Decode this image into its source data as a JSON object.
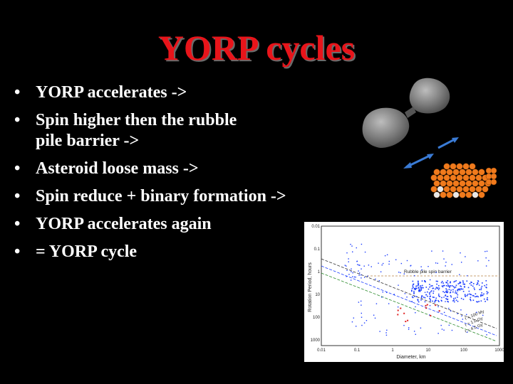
{
  "slide": {
    "title": "YORP cycles",
    "bullets": [
      "YORP accelerates ->",
      "Spin higher then the rubble pile barrier ->",
      "Asteroid loose mass ->",
      "Spin reduce + binary formation ->",
      "YORP accelerates again",
      "= YORP cycle"
    ],
    "bullet_marker": "•"
  },
  "plot": {
    "ylabel": "Rotation Period, hours",
    "xlabel": "Diameter, km",
    "annotation": "Rubble pile spin barrier",
    "x_ticks": [
      "0.01",
      "0.1",
      "1",
      "10",
      "100",
      "1000"
    ],
    "y_ticks": [
      "0.01",
      "0.1",
      "1",
      "10",
      "100",
      "1000"
    ],
    "line_labels": [
      "τ = 100 My",
      "τ = 1.0 Gy",
      "τ = 4.5 Gy"
    ],
    "colors": {
      "points": "#1a3cff",
      "barrier": "#c8a070",
      "red_points": "#e02020"
    }
  },
  "colors": {
    "title": "#e8141a",
    "background": "#000000",
    "text": "#ffffff",
    "arrow": "#3a7bd5",
    "rubble": "#f07a1c"
  }
}
